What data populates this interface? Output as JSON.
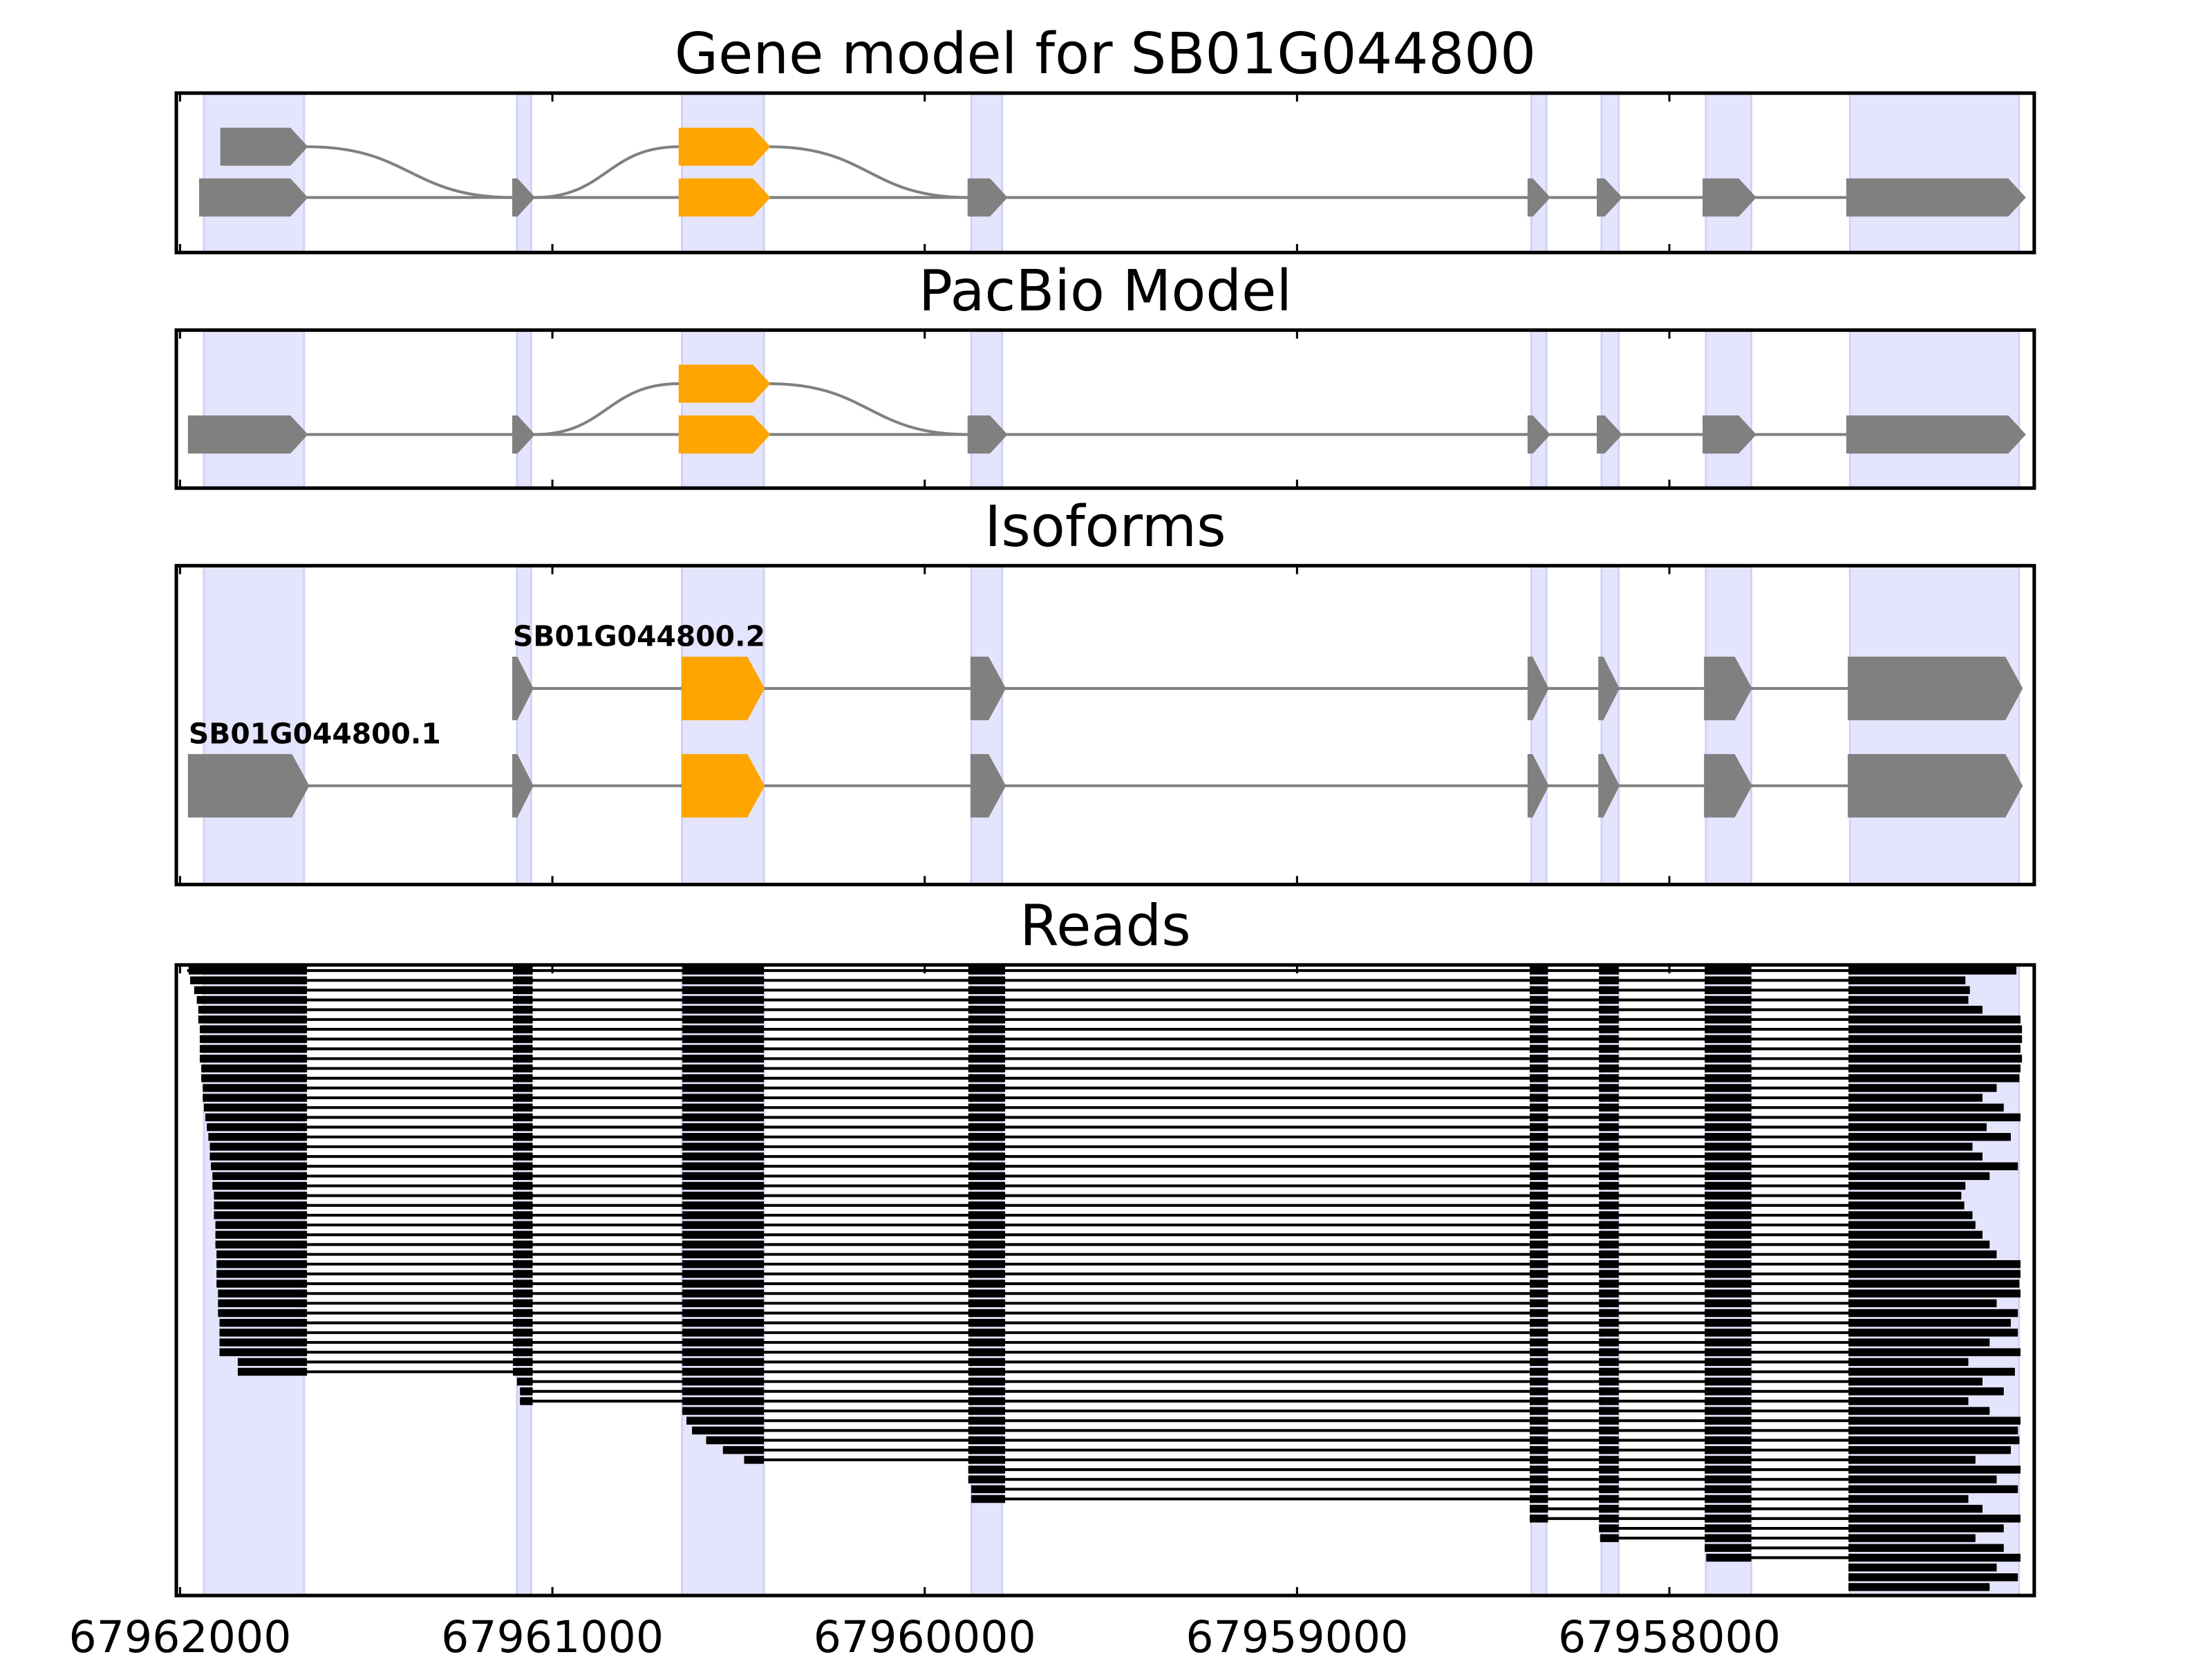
{
  "chart_data": {
    "type": "gene_model",
    "xlim": [
      67962010,
      67957020
    ],
    "xticks": [
      67962000,
      67961000,
      67960000,
      67959000,
      67958000
    ],
    "region_color": "#e4e4fc",
    "exon_regions": [
      [
        67961936,
        67961667
      ],
      [
        67961095,
        67961057
      ],
      [
        67960652,
        67960432
      ],
      [
        67959875,
        67959792
      ],
      [
        67958371,
        67958330
      ],
      [
        67958182,
        67958136
      ],
      [
        67957902,
        67957780
      ],
      [
        67957515,
        67957061
      ]
    ],
    "line_color": "#808080",
    "panels": [
      {
        "title": "Gene model for SB01G044800",
        "nodes": [
          {
            "start": 67961890,
            "end": 67961659,
            "row": 0,
            "color": "#808080"
          },
          {
            "start": 67961947,
            "end": 67961659,
            "row": 1,
            "color": "#808080"
          },
          {
            "start": 67961106,
            "end": 67961049,
            "row": 1,
            "color": "#808080"
          },
          {
            "start": 67960659,
            "end": 67960417,
            "row": 0,
            "color": "#ffa500"
          },
          {
            "start": 67960659,
            "end": 67960417,
            "row": 1,
            "color": "#ffa500"
          },
          {
            "start": 67959883,
            "end": 67959780,
            "row": 1,
            "color": "#808080"
          },
          {
            "start": 67958379,
            "end": 67958322,
            "row": 1,
            "color": "#808080"
          },
          {
            "start": 67958193,
            "end": 67958129,
            "row": 1,
            "color": "#808080"
          },
          {
            "start": 67957909,
            "end": 67957769,
            "row": 1,
            "color": "#808080"
          },
          {
            "start": 67957523,
            "end": 67957045,
            "row": 1,
            "color": "#808080"
          }
        ],
        "edges": [
          [
            0,
            2
          ],
          [
            1,
            2
          ],
          [
            2,
            3
          ],
          [
            2,
            4
          ],
          [
            3,
            5
          ],
          [
            4,
            5
          ],
          [
            5,
            6
          ],
          [
            6,
            7
          ],
          [
            7,
            8
          ],
          [
            8,
            9
          ]
        ]
      },
      {
        "title": "PacBio Model",
        "nodes": [
          {
            "start": 67961977,
            "end": 67961659,
            "row": 1,
            "color": "#808080"
          },
          {
            "start": 67961106,
            "end": 67961049,
            "row": 1,
            "color": "#808080"
          },
          {
            "start": 67960659,
            "end": 67960417,
            "row": 0,
            "color": "#ffa500"
          },
          {
            "start": 67960659,
            "end": 67960417,
            "row": 1,
            "color": "#ffa500"
          },
          {
            "start": 67959883,
            "end": 67959780,
            "row": 1,
            "color": "#808080"
          },
          {
            "start": 67958379,
            "end": 67958322,
            "row": 1,
            "color": "#808080"
          },
          {
            "start": 67958193,
            "end": 67958129,
            "row": 1,
            "color": "#808080"
          },
          {
            "start": 67957909,
            "end": 67957769,
            "row": 1,
            "color": "#808080"
          },
          {
            "start": 67957523,
            "end": 67957045,
            "row": 1,
            "color": "#808080"
          }
        ],
        "edges": [
          [
            0,
            1
          ],
          [
            1,
            2
          ],
          [
            1,
            3
          ],
          [
            2,
            4
          ],
          [
            3,
            4
          ],
          [
            4,
            5
          ],
          [
            5,
            6
          ],
          [
            6,
            7
          ],
          [
            7,
            8
          ]
        ]
      },
      {
        "title": "Isoforms",
        "nodes": [
          {
            "start": 67961106,
            "end": 67961053,
            "row": 0,
            "color": "#808080"
          },
          {
            "start": 67960651,
            "end": 67960432,
            "row": 0,
            "color": "#ffa500"
          },
          {
            "start": 67959875,
            "end": 67959784,
            "row": 0,
            "color": "#808080"
          },
          {
            "start": 67958379,
            "end": 67958326,
            "row": 0,
            "color": "#808080"
          },
          {
            "start": 67958189,
            "end": 67958136,
            "row": 0,
            "color": "#808080"
          },
          {
            "start": 67957905,
            "end": 67957780,
            "row": 0,
            "color": "#808080"
          },
          {
            "start": 67957519,
            "end": 67957053,
            "row": 0,
            "color": "#808080"
          },
          {
            "start": 67961977,
            "end": 67961655,
            "row": 1,
            "color": "#808080"
          },
          {
            "start": 67961106,
            "end": 67961053,
            "row": 1,
            "color": "#808080"
          },
          {
            "start": 67960651,
            "end": 67960432,
            "row": 1,
            "color": "#ffa500"
          },
          {
            "start": 67959875,
            "end": 67959784,
            "row": 1,
            "color": "#808080"
          },
          {
            "start": 67958379,
            "end": 67958326,
            "row": 1,
            "color": "#808080"
          },
          {
            "start": 67958189,
            "end": 67958136,
            "row": 1,
            "color": "#808080"
          },
          {
            "start": 67957905,
            "end": 67957780,
            "row": 1,
            "color": "#808080"
          },
          {
            "start": 67957519,
            "end": 67957053,
            "row": 1,
            "color": "#808080"
          }
        ],
        "edges": [
          [
            0,
            1
          ],
          [
            1,
            2
          ],
          [
            2,
            3
          ],
          [
            3,
            4
          ],
          [
            4,
            5
          ],
          [
            5,
            6
          ],
          [
            7,
            8
          ],
          [
            8,
            9
          ],
          [
            9,
            10
          ],
          [
            10,
            11
          ],
          [
            11,
            12
          ],
          [
            12,
            13
          ],
          [
            13,
            14
          ]
        ],
        "transcripts": [
          {
            "name": "SB01G044800.2",
            "node": 0
          },
          {
            "name": "SB01G044800.1",
            "node": 7
          }
        ]
      }
    ],
    "reads": {
      "title": "Reads",
      "color": "#000000",
      "exons": [
        [
          67961977,
          67961659
        ],
        [
          67961106,
          67961053
        ],
        [
          67960651,
          67960432
        ],
        [
          67959883,
          67959784
        ],
        [
          67958375,
          67958326
        ],
        [
          67958189,
          67958136
        ],
        [
          67957905,
          67957780
        ],
        [
          67957519,
          67957053
        ]
      ],
      "spans": [
        [
          67961981,
          67957068
        ],
        [
          67961973,
          67957205
        ],
        [
          67961962,
          67957193
        ],
        [
          67961955,
          67957197
        ],
        [
          67961951,
          67957159
        ],
        [
          67961951,
          67957057
        ],
        [
          67961947,
          67957053
        ],
        [
          67961947,
          67957053
        ],
        [
          67961947,
          67957057
        ],
        [
          67961947,
          67957053
        ],
        [
          67961943,
          67957057
        ],
        [
          67961943,
          67957060
        ],
        [
          67961939,
          67957121
        ],
        [
          67961939,
          67957159
        ],
        [
          67961936,
          67957102
        ],
        [
          67961932,
          67957057
        ],
        [
          67961928,
          67957148
        ],
        [
          67961924,
          67957083
        ],
        [
          67961920,
          67957186
        ],
        [
          67961920,
          67957159
        ],
        [
          67961917,
          67957064
        ],
        [
          67961913,
          67957140
        ],
        [
          67961913,
          67957205
        ],
        [
          67961909,
          67957216
        ],
        [
          67961909,
          67957208
        ],
        [
          67961909,
          67957186
        ],
        [
          67961905,
          67957178
        ],
        [
          67961905,
          67957159
        ],
        [
          67961905,
          67957140
        ],
        [
          67961902,
          67957121
        ],
        [
          67961902,
          67957057
        ],
        [
          67961902,
          67957057
        ],
        [
          67961902,
          67957060
        ],
        [
          67961898,
          67957057
        ],
        [
          67961898,
          67957121
        ],
        [
          67961898,
          67957064
        ],
        [
          67961894,
          67957083
        ],
        [
          67961894,
          67957064
        ],
        [
          67961894,
          67957140
        ],
        [
          67961894,
          67957057
        ],
        [
          67961845,
          67957197
        ],
        [
          67961845,
          67957072
        ],
        [
          67961095,
          67957159
        ],
        [
          67961087,
          67957102
        ],
        [
          67961087,
          67957197
        ],
        [
          67960651,
          67957140
        ],
        [
          67960640,
          67957057
        ],
        [
          67960625,
          67957064
        ],
        [
          67960587,
          67957060
        ],
        [
          67960542,
          67957083
        ],
        [
          67960485,
          67957178
        ],
        [
          67959883,
          67957057
        ],
        [
          67959883,
          67957121
        ],
        [
          67959875,
          67957064
        ],
        [
          67959875,
          67957197
        ],
        [
          67958375,
          67957159
        ],
        [
          67958375,
          67957057
        ],
        [
          67958189,
          67957102
        ],
        [
          67958186,
          67957178
        ],
        [
          67957905,
          67957102
        ],
        [
          67957901,
          67957057
        ],
        [
          67957519,
          67957121
        ],
        [
          67957519,
          67957064
        ],
        [
          67957519,
          67957140
        ]
      ]
    }
  }
}
